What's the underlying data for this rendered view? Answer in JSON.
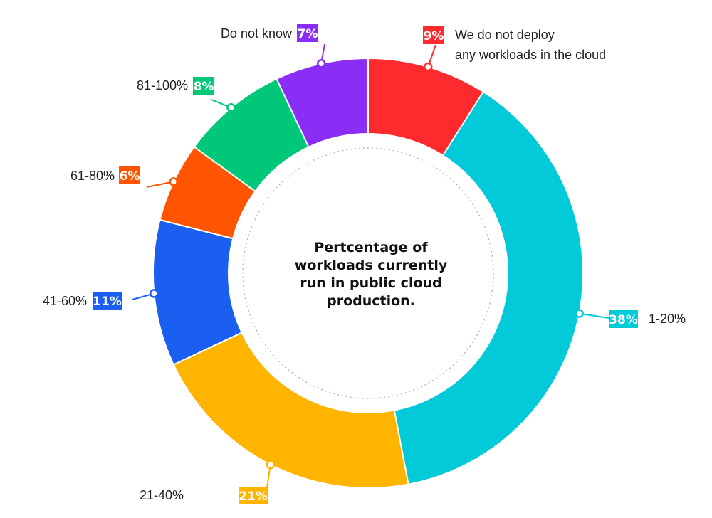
{
  "chart_data": {
    "type": "pie",
    "title": "Pertcentage of workloads currently run in public cloud production.",
    "categories": [
      "We do not deploy any workloads in the cloud",
      "1-20%",
      "21-40%",
      "41-60%",
      "61-80%",
      "81-100%",
      "Do not know"
    ],
    "values": [
      9,
      38,
      21,
      11,
      6,
      8,
      7
    ],
    "value_labels": [
      "9%",
      "38%",
      "21%",
      "11%",
      "6%",
      "8%",
      "7%"
    ],
    "colors": [
      "#ff2a2d",
      "#03cad8",
      "#ffb400",
      "#1a5ff0",
      "#ff5400",
      "#00c878",
      "#8a2ef5"
    ],
    "legend": "none"
  }
}
